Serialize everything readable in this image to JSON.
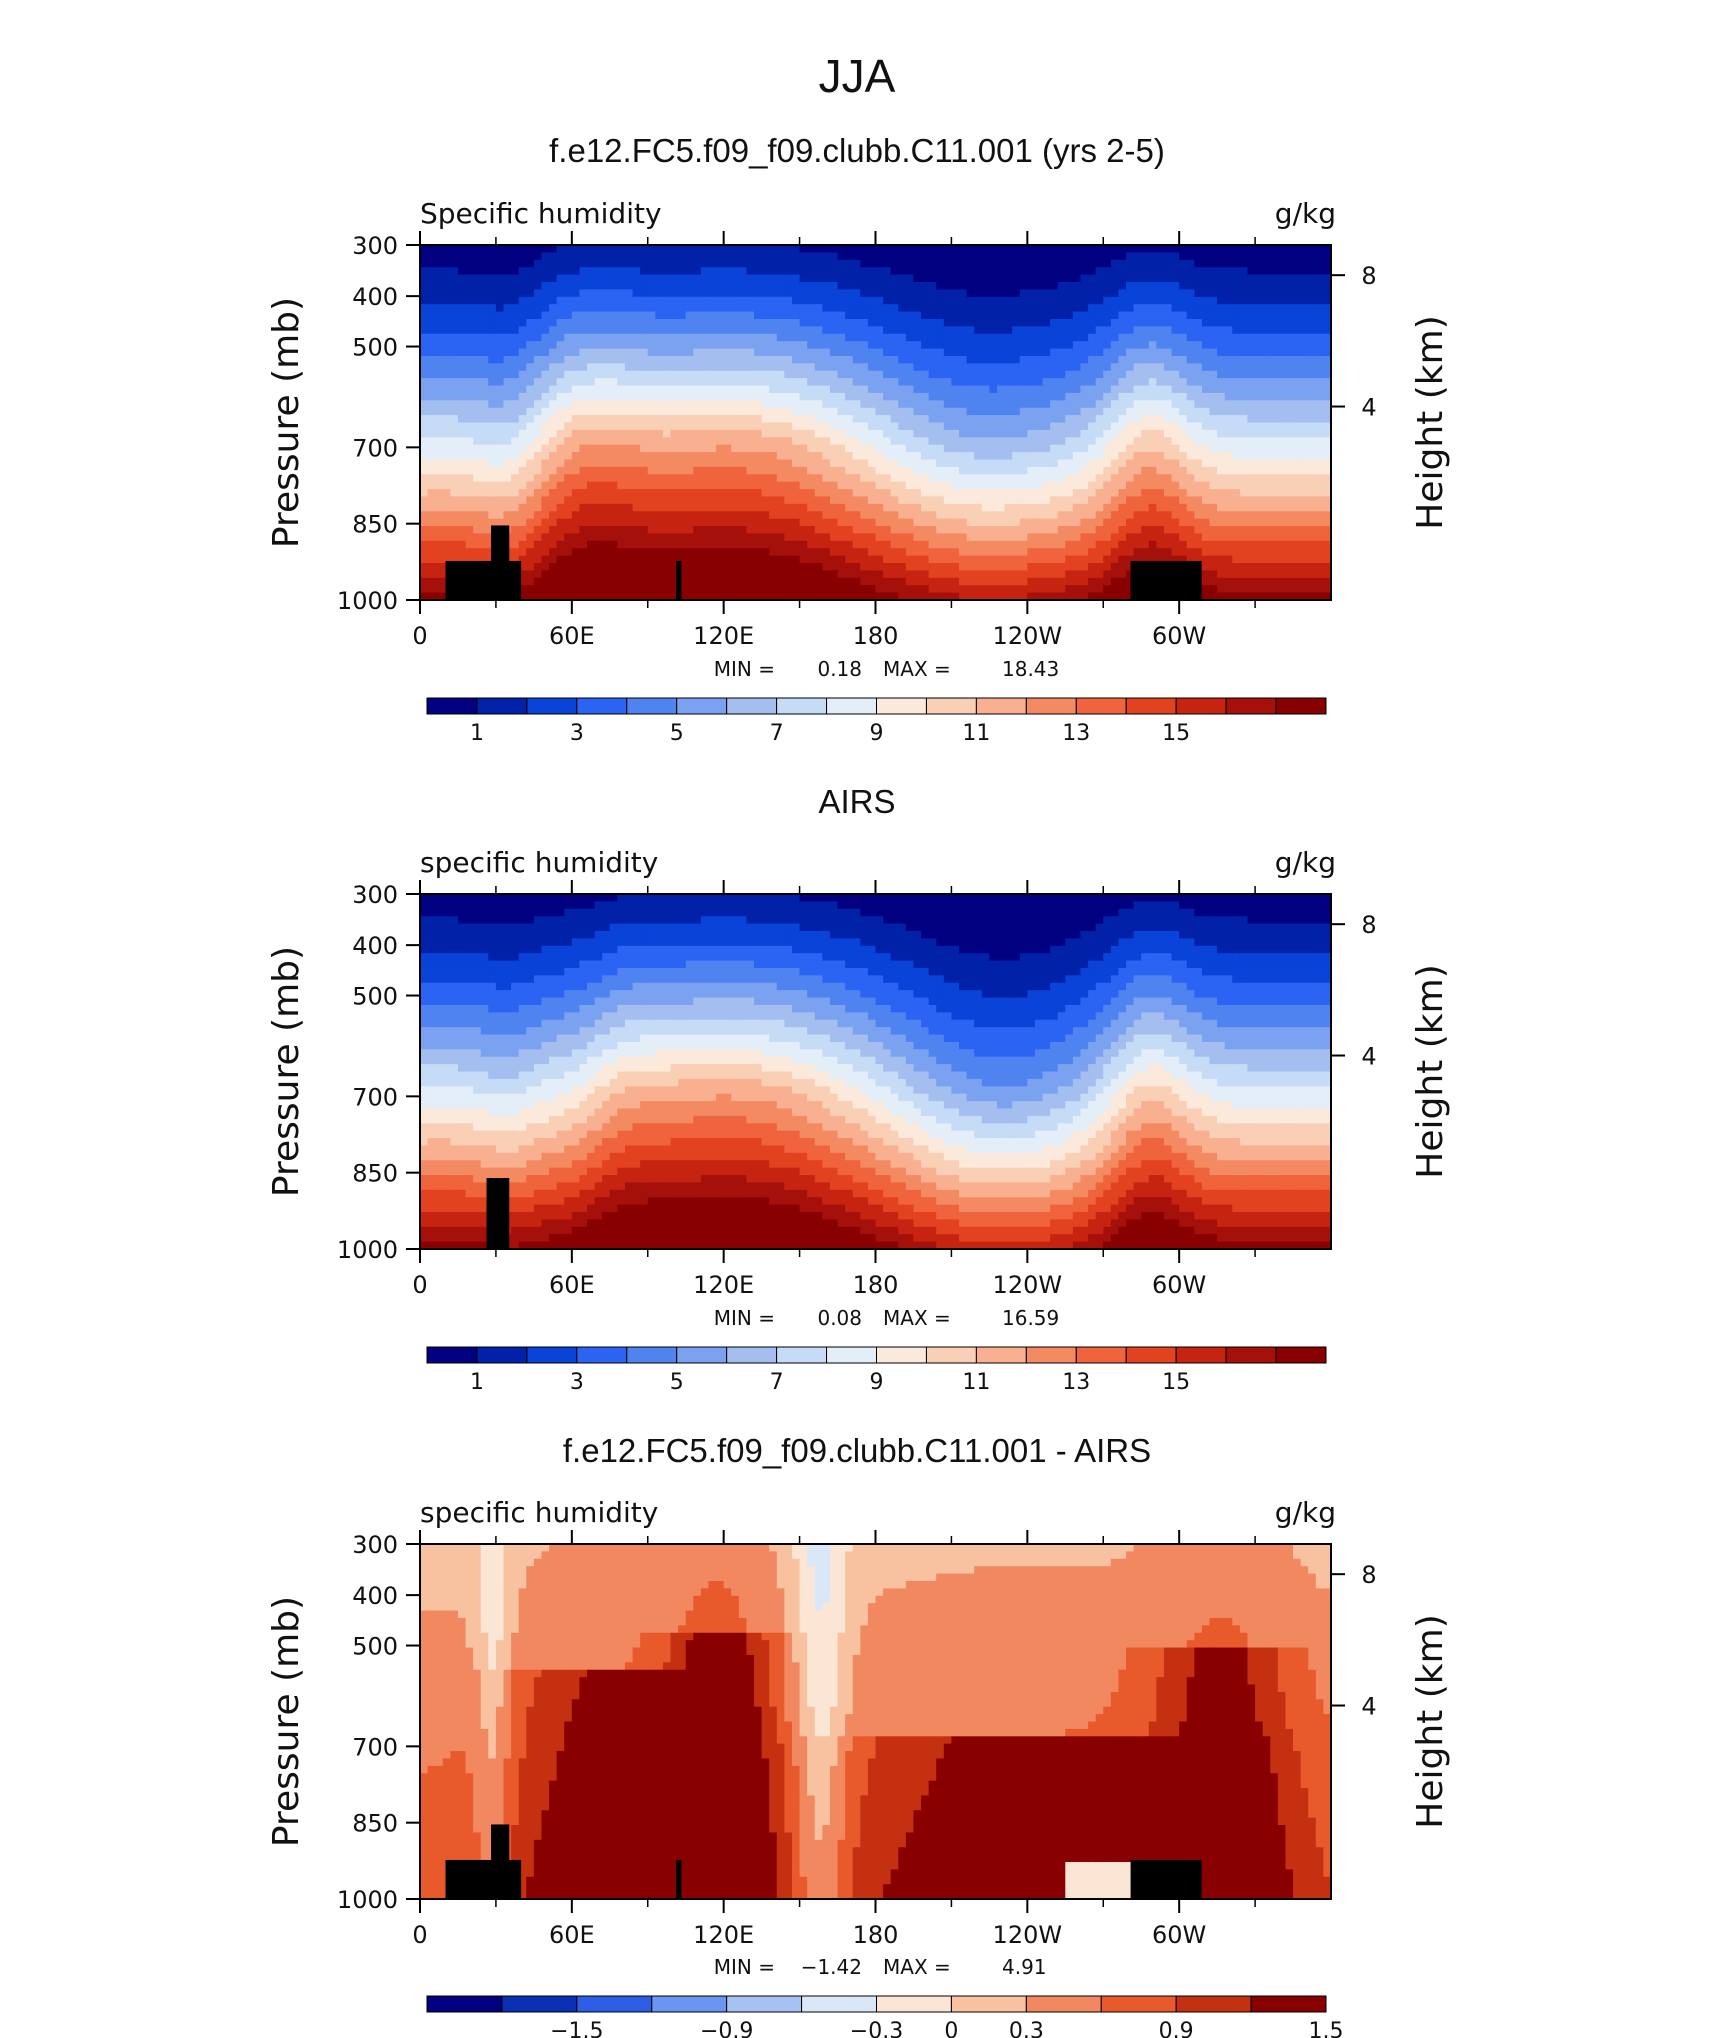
{
  "page_title": "JJA",
  "chart_data": [
    {
      "type": "heatmap",
      "title": "f.e12.FC5.f09_f09.clubb.C11.001 (yrs 2-5)",
      "left_label": "Specific humidity",
      "right_label": "g/kg",
      "ylabel": "Pressure (mb)",
      "ylabel_right": "Height (km)",
      "x_ticks": [
        "0",
        "60E",
        "120E",
        "180",
        "120W",
        "60W"
      ],
      "y_ticks": [
        "300",
        "400",
        "500",
        "700",
        "850",
        "1000"
      ],
      "y_right_ticks": [
        "8",
        "4"
      ],
      "stats": {
        "min_label": "MIN =",
        "min": "0.18",
        "max_label": "MAX =",
        "max": "18.43"
      },
      "colorbar_labels": [
        "1",
        "3",
        "5",
        "7",
        "9",
        "11",
        "13",
        "15"
      ]
    },
    {
      "type": "heatmap",
      "title": "AIRS",
      "left_label": "specific humidity",
      "right_label": "g/kg",
      "ylabel": "Pressure (mb)",
      "ylabel_right": "Height (km)",
      "x_ticks": [
        "0",
        "60E",
        "120E",
        "180",
        "120W",
        "60W"
      ],
      "y_ticks": [
        "300",
        "400",
        "500",
        "700",
        "850",
        "1000"
      ],
      "y_right_ticks": [
        "8",
        "4"
      ],
      "stats": {
        "min_label": "MIN =",
        "min": "0.08",
        "max_label": "MAX =",
        "max": "16.59"
      },
      "colorbar_labels": [
        "1",
        "3",
        "5",
        "7",
        "9",
        "11",
        "13",
        "15"
      ]
    },
    {
      "type": "heatmap",
      "title": "f.e12.FC5.f09_f09.clubb.C11.001 - AIRS",
      "left_label": "specific humidity",
      "right_label": "g/kg",
      "ylabel": "Pressure (mb)",
      "ylabel_right": "Height (km)",
      "x_ticks": [
        "0",
        "60E",
        "120E",
        "180",
        "120W",
        "60W"
      ],
      "y_ticks": [
        "300",
        "400",
        "500",
        "700",
        "850",
        "1000"
      ],
      "y_right_ticks": [
        "8",
        "4"
      ],
      "stats": {
        "min_label": "MIN =",
        "min": "−1.42",
        "max_label": "MAX =",
        "max": "4.91"
      },
      "colorbar_labels": [
        "−1.5",
        "−0.9",
        "−0.3",
        "0",
        "0.3",
        "0.9",
        "1.5"
      ]
    }
  ],
  "colors": {
    "seq": [
      "#000080",
      "#0021a8",
      "#0943d8",
      "#2b63f2",
      "#4f83f0",
      "#7ba2f0",
      "#a3beef",
      "#c6dbf5",
      "#e4eef8",
      "#fbe9dc",
      "#f9cfb5",
      "#f8b090",
      "#f48a62",
      "#ef633d",
      "#e2421f",
      "#c62411",
      "#a5100a",
      "#880000"
    ],
    "div": [
      "#000080",
      "#0a2fb4",
      "#2d5fe6",
      "#6b95f2",
      "#a6c2f3",
      "#d9e7f7",
      "#fbe6d6",
      "#f8c2a1",
      "#f28860",
      "#e85a2b",
      "#c53011",
      "#880000"
    ]
  }
}
